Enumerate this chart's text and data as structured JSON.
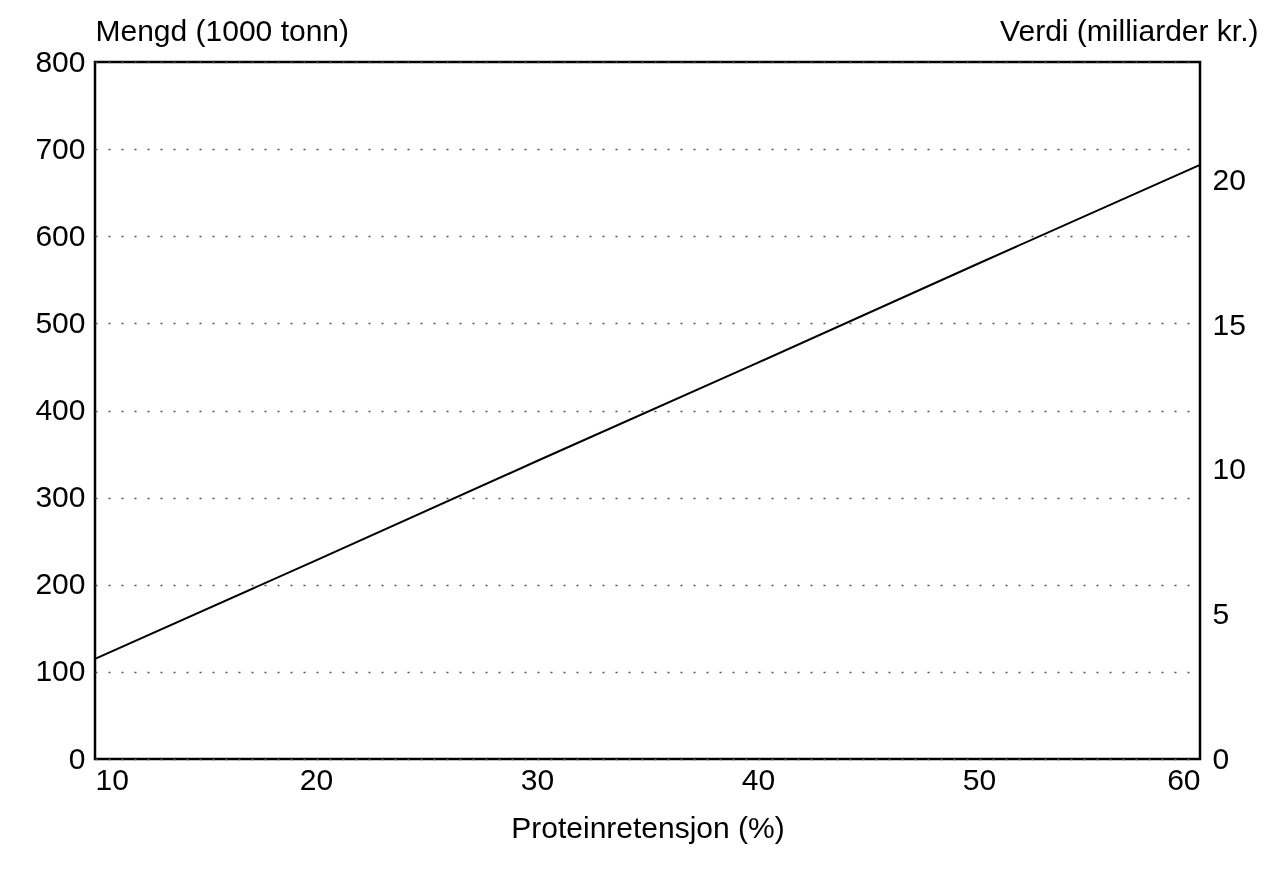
{
  "chart_data": {
    "type": "line",
    "xlabel": "Proteinretensjon (%)",
    "ylabel": "Mengd (1000 tonn)",
    "y2label": "Verdi (milliarder kr.)",
    "x": [
      10,
      20,
      30,
      40,
      50,
      60
    ],
    "series": [
      {
        "color": "#000000",
        "values": [
          115,
          228,
          342,
          455,
          569,
          682
        ]
      }
    ],
    "xlim": [
      10,
      60
    ],
    "xticks": [
      10,
      20,
      30,
      40,
      50,
      60
    ],
    "ylim": [
      0,
      800
    ],
    "yticks": [
      0,
      100,
      200,
      300,
      400,
      500,
      600,
      700,
      800
    ],
    "y2lim": [
      0,
      24.1
    ],
    "y2ticks": [
      0,
      5,
      10,
      15,
      20
    ],
    "grid": "y",
    "line_style": "solid",
    "marker": "none"
  }
}
